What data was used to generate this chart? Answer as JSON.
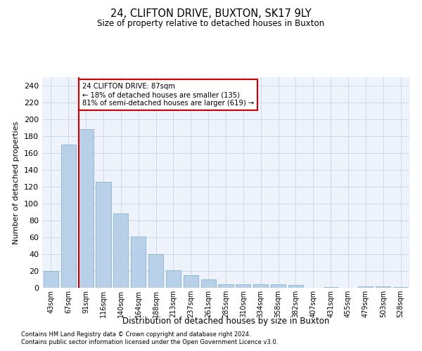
{
  "title": "24, CLIFTON DRIVE, BUXTON, SK17 9LY",
  "subtitle": "Size of property relative to detached houses in Buxton",
  "xlabel": "Distribution of detached houses by size in Buxton",
  "ylabel": "Number of detached properties",
  "categories": [
    "43sqm",
    "67sqm",
    "91sqm",
    "116sqm",
    "140sqm",
    "164sqm",
    "188sqm",
    "213sqm",
    "237sqm",
    "261sqm",
    "285sqm",
    "310sqm",
    "334sqm",
    "358sqm",
    "382sqm",
    "407sqm",
    "431sqm",
    "455sqm",
    "479sqm",
    "503sqm",
    "528sqm"
  ],
  "values": [
    20,
    170,
    188,
    126,
    88,
    61,
    40,
    21,
    15,
    10,
    4,
    4,
    4,
    4,
    3,
    0,
    1,
    0,
    2,
    2,
    1
  ],
  "bar_color": "#b8d0e8",
  "bar_edge_color": "#7aaac8",
  "vline_color": "#cc0000",
  "annotation_text": "24 CLIFTON DRIVE: 87sqm\n← 18% of detached houses are smaller (135)\n81% of semi-detached houses are larger (619) →",
  "annotation_box_facecolor": "#ffffff",
  "annotation_box_edgecolor": "#cc0000",
  "grid_color": "#ccd8e8",
  "background_color": "#eef2fa",
  "ylim": [
    0,
    250
  ],
  "yticks": [
    0,
    20,
    40,
    60,
    80,
    100,
    120,
    140,
    160,
    180,
    200,
    220,
    240
  ],
  "footnote1": "Contains HM Land Registry data © Crown copyright and database right 2024.",
  "footnote2": "Contains public sector information licensed under the Open Government Licence v3.0."
}
